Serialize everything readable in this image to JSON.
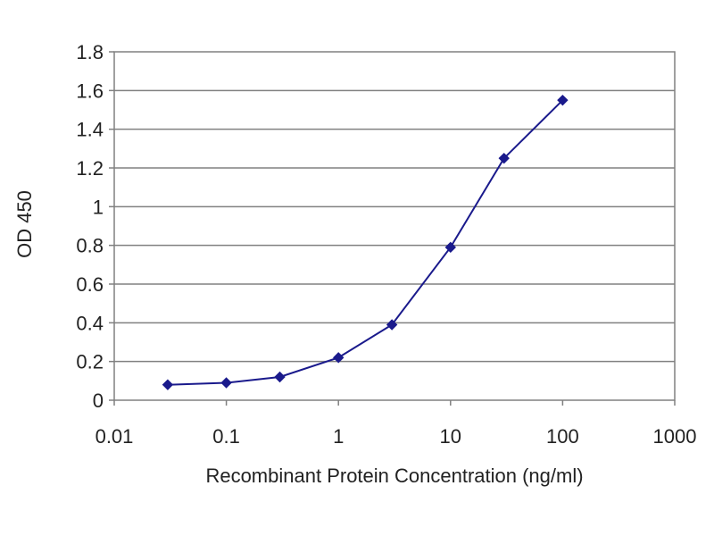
{
  "chart_data": {
    "type": "line",
    "title": "",
    "xlabel": "Recombinant Protein Concentration (ng/ml)",
    "ylabel": "OD 450",
    "x_scale": "log",
    "xlim": [
      0.01,
      1000
    ],
    "ylim": [
      0,
      1.8
    ],
    "x_ticks": [
      "0.01",
      "0.1",
      "1",
      "10",
      "100",
      "1000"
    ],
    "y_ticks": [
      "0",
      "0.2",
      "0.4",
      "0.6",
      "0.8",
      "1",
      "1.2",
      "1.4",
      "1.6",
      "1.8"
    ],
    "grid": "horizontal",
    "legend": "none",
    "series": [
      {
        "color": "#1a1a8c",
        "marker": "diamond",
        "x": [
          0.03,
          0.1,
          0.3,
          1,
          3,
          10,
          30,
          100
        ],
        "y": [
          0.08,
          0.09,
          0.12,
          0.22,
          0.39,
          0.79,
          1.25,
          1.55
        ]
      }
    ]
  }
}
